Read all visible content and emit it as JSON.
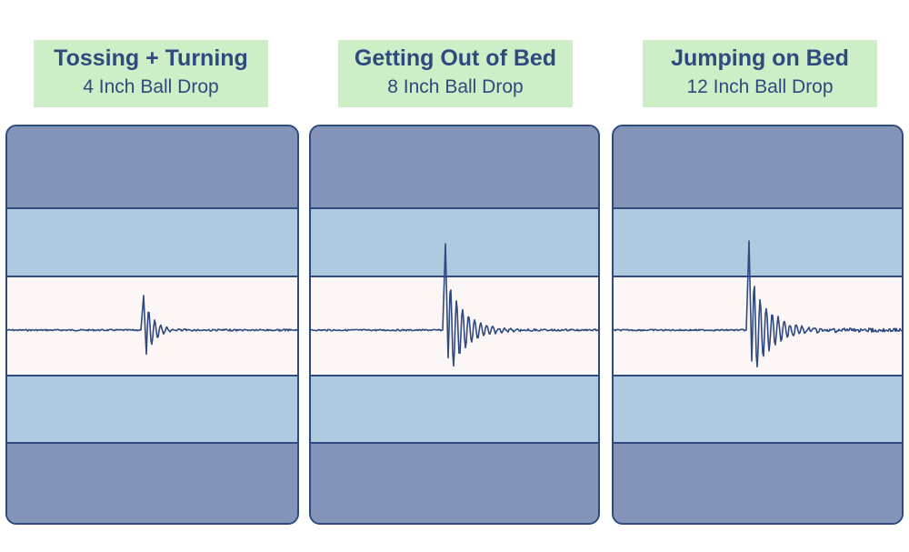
{
  "panels": [
    {
      "title": "Tossing + Turning",
      "subtitle": "4 Inch Ball Drop"
    },
    {
      "title": "Getting Out of Bed",
      "subtitle": "8 Inch Ball Drop"
    },
    {
      "title": "Jumping on Bed",
      "subtitle": "12 Inch Ball Drop"
    }
  ],
  "colors": {
    "label_bg": "#cdeec6",
    "text": "#2e4a7f",
    "outer_band": "#8494b8",
    "inner_band": "#aecadf",
    "center_band": "#fdf6f6",
    "line": "#2e4a7f"
  },
  "chart_data": [
    {
      "type": "line",
      "title": "Tossing + Turning",
      "subtitle": "4 Inch Ball Drop",
      "series": [
        {
          "peak_up": 38,
          "peak_down": -48,
          "ring_decay": 0.62,
          "tail_noise": 2
        }
      ]
    },
    {
      "type": "line",
      "title": "Getting Out of Bed",
      "subtitle": "8 Inch Ball Drop",
      "series": [
        {
          "peak_up": 95,
          "peak_down": -72,
          "ring_decay": 0.78,
          "tail_noise": 2
        }
      ]
    },
    {
      "type": "line",
      "title": "Jumping on Bed",
      "subtitle": "12 Inch Ball Drop",
      "series": [
        {
          "peak_up": 98,
          "peak_down": -78,
          "ring_decay": 0.8,
          "tail_noise": 4
        }
      ]
    }
  ]
}
